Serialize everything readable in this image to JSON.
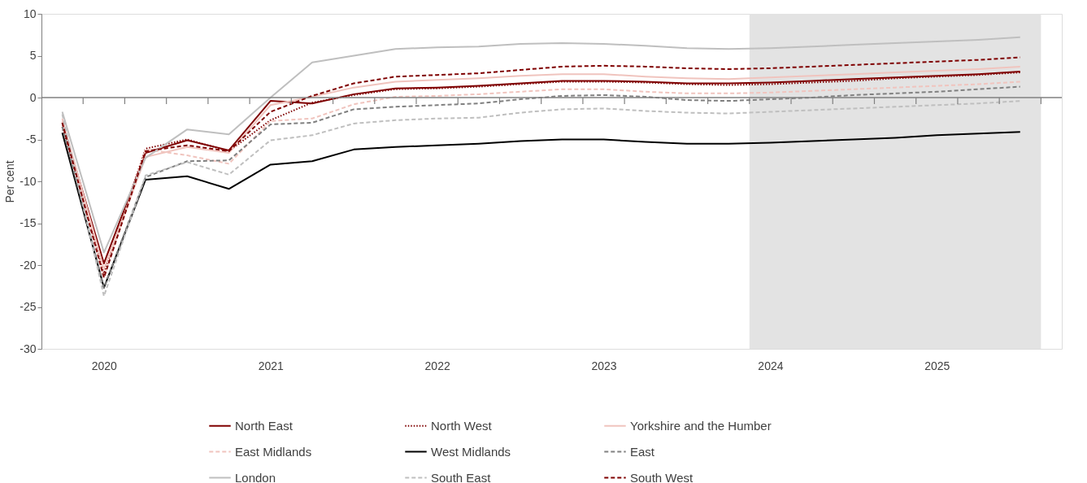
{
  "chart_data": {
    "type": "line",
    "ylabel": "Per cent",
    "x": [
      2019.75,
      2020,
      2020.25,
      2020.5,
      2020.75,
      2021,
      2021.25,
      2021.5,
      2021.75,
      2022,
      2022.25,
      2022.5,
      2022.75,
      2023,
      2023.25,
      2023.5,
      2023.75,
      2024,
      2024.25,
      2024.5,
      2024.75,
      2025,
      2025.25,
      2025.5
    ],
    "xlim": [
      2019.625,
      2025.75
    ],
    "xticks": [
      {
        "value": 2019.875,
        "label": null
      },
      {
        "value": 2020,
        "label": "2020"
      },
      {
        "value": 2020.125,
        "label": null
      },
      {
        "value": 2020.375,
        "label": null
      },
      {
        "value": 2020.625,
        "label": null
      },
      {
        "value": 2020.875,
        "label": null
      },
      {
        "value": 2021,
        "label": "2021"
      },
      {
        "value": 2021.125,
        "label": null
      },
      {
        "value": 2021.375,
        "label": null
      },
      {
        "value": 2021.625,
        "label": null
      },
      {
        "value": 2021.875,
        "label": null
      },
      {
        "value": 2022,
        "label": "2022"
      },
      {
        "value": 2022.125,
        "label": null
      },
      {
        "value": 2022.375,
        "label": null
      },
      {
        "value": 2022.625,
        "label": null
      },
      {
        "value": 2022.875,
        "label": null
      },
      {
        "value": 2023,
        "label": "2023"
      },
      {
        "value": 2023.125,
        "label": null
      },
      {
        "value": 2023.375,
        "label": null
      },
      {
        "value": 2023.625,
        "label": null
      },
      {
        "value": 2023.875,
        "label": null
      },
      {
        "value": 2024,
        "label": "2024"
      },
      {
        "value": 2024.125,
        "label": null
      },
      {
        "value": 2024.375,
        "label": null
      },
      {
        "value": 2024.625,
        "label": null
      },
      {
        "value": 2024.875,
        "label": null
      },
      {
        "value": 2025,
        "label": "2025"
      },
      {
        "value": 2025.125,
        "label": null
      },
      {
        "value": 2025.375,
        "label": null
      },
      {
        "value": 2025.625,
        "label": null
      }
    ],
    "ylim": [
      -30,
      10
    ],
    "yticks": [
      -30,
      -25,
      -20,
      -15,
      -10,
      -5,
      0,
      5,
      10
    ],
    "grid": false,
    "legend": "bottom",
    "ref_lines": [
      {
        "axis": "y",
        "value": 0,
        "color": "#808080"
      }
    ],
    "bands": [
      {
        "axis": "x",
        "from": 2023.875,
        "to": 2025.625,
        "color": "#e3e3e3"
      }
    ],
    "series": [
      {
        "name": "North East",
        "color": "#7f0000",
        "line_style": "solid",
        "values": [
          -3.0,
          -19.8,
          -6.6,
          -5.1,
          -6.3,
          -0.4,
          -0.7,
          0.4,
          1.1,
          1.2,
          1.4,
          1.7,
          2.0,
          2.0,
          1.9,
          1.7,
          1.7,
          1.8,
          2.0,
          2.2,
          2.4,
          2.6,
          2.8,
          3.1
        ]
      },
      {
        "name": "North West",
        "color": "#7f0000",
        "line_style": "dotted",
        "values": [
          -3.5,
          -21.0,
          -6.1,
          -5.0,
          -6.4,
          -2.7,
          -0.6,
          0.3,
          1.0,
          1.1,
          1.3,
          1.6,
          1.9,
          1.9,
          1.8,
          1.6,
          1.5,
          1.6,
          1.8,
          2.0,
          2.3,
          2.5,
          2.7,
          3.0
        ]
      },
      {
        "name": "Yorkshire and the Humber",
        "color": "#f0c4be",
        "line_style": "solid",
        "values": [
          -2.5,
          -20.5,
          -7.1,
          -5.9,
          -6.6,
          -0.9,
          0.1,
          1.2,
          1.9,
          2.1,
          2.3,
          2.6,
          2.8,
          2.8,
          2.5,
          2.3,
          2.2,
          2.4,
          2.6,
          2.8,
          3.0,
          3.2,
          3.4,
          3.7
        ]
      },
      {
        "name": "East Midlands",
        "color": "#f0c4be",
        "line_style": "dashed",
        "values": [
          -2.8,
          -21.5,
          -6.2,
          -6.9,
          -7.9,
          -2.8,
          -2.5,
          -0.8,
          0.1,
          0.2,
          0.4,
          0.7,
          1.0,
          1.0,
          0.7,
          0.5,
          0.5,
          0.6,
          0.8,
          1.0,
          1.2,
          1.4,
          1.6,
          1.9
        ]
      },
      {
        "name": "West Midlands",
        "color": "#000000",
        "line_style": "solid",
        "values": [
          -4.2,
          -22.7,
          -9.8,
          -9.4,
          -10.9,
          -8.0,
          -7.6,
          -6.2,
          -5.9,
          -5.7,
          -5.5,
          -5.2,
          -5.0,
          -5.0,
          -5.3,
          -5.5,
          -5.5,
          -5.4,
          -5.2,
          -5.0,
          -4.8,
          -4.5,
          -4.3,
          -4.1
        ]
      },
      {
        "name": "East",
        "color": "#808080",
        "line_style": "dashed",
        "values": [
          -3.5,
          -22.7,
          -9.5,
          -7.6,
          -7.5,
          -3.2,
          -3.0,
          -1.4,
          -1.1,
          -0.9,
          -0.7,
          -0.2,
          0.2,
          0.3,
          0.1,
          -0.3,
          -0.4,
          -0.2,
          0.0,
          0.3,
          0.5,
          0.7,
          1.0,
          1.3
        ]
      },
      {
        "name": "London",
        "color": "#bfbfbf",
        "line_style": "solid",
        "values": [
          -1.7,
          -18.5,
          -7.2,
          -3.8,
          -4.4,
          0.0,
          4.2,
          5.0,
          5.8,
          6.0,
          6.1,
          6.4,
          6.5,
          6.4,
          6.2,
          5.9,
          5.8,
          5.9,
          6.1,
          6.3,
          6.5,
          6.7,
          6.9,
          7.2
        ]
      },
      {
        "name": "South East",
        "color": "#bfbfbf",
        "line_style": "dashed",
        "values": [
          -2.0,
          -23.7,
          -9.3,
          -7.7,
          -9.2,
          -5.1,
          -4.5,
          -3.1,
          -2.7,
          -2.5,
          -2.4,
          -1.8,
          -1.4,
          -1.3,
          -1.6,
          -1.8,
          -1.9,
          -1.7,
          -1.5,
          -1.3,
          -1.1,
          -0.9,
          -0.7,
          -0.4
        ]
      },
      {
        "name": "South West",
        "color": "#7f0000",
        "line_style": "dashed",
        "values": [
          -3.0,
          -21.5,
          -6.4,
          -5.7,
          -6.4,
          -1.7,
          0.2,
          1.7,
          2.5,
          2.7,
          2.9,
          3.3,
          3.7,
          3.8,
          3.7,
          3.5,
          3.4,
          3.5,
          3.7,
          3.9,
          4.1,
          4.3,
          4.5,
          4.8
        ]
      }
    ]
  }
}
